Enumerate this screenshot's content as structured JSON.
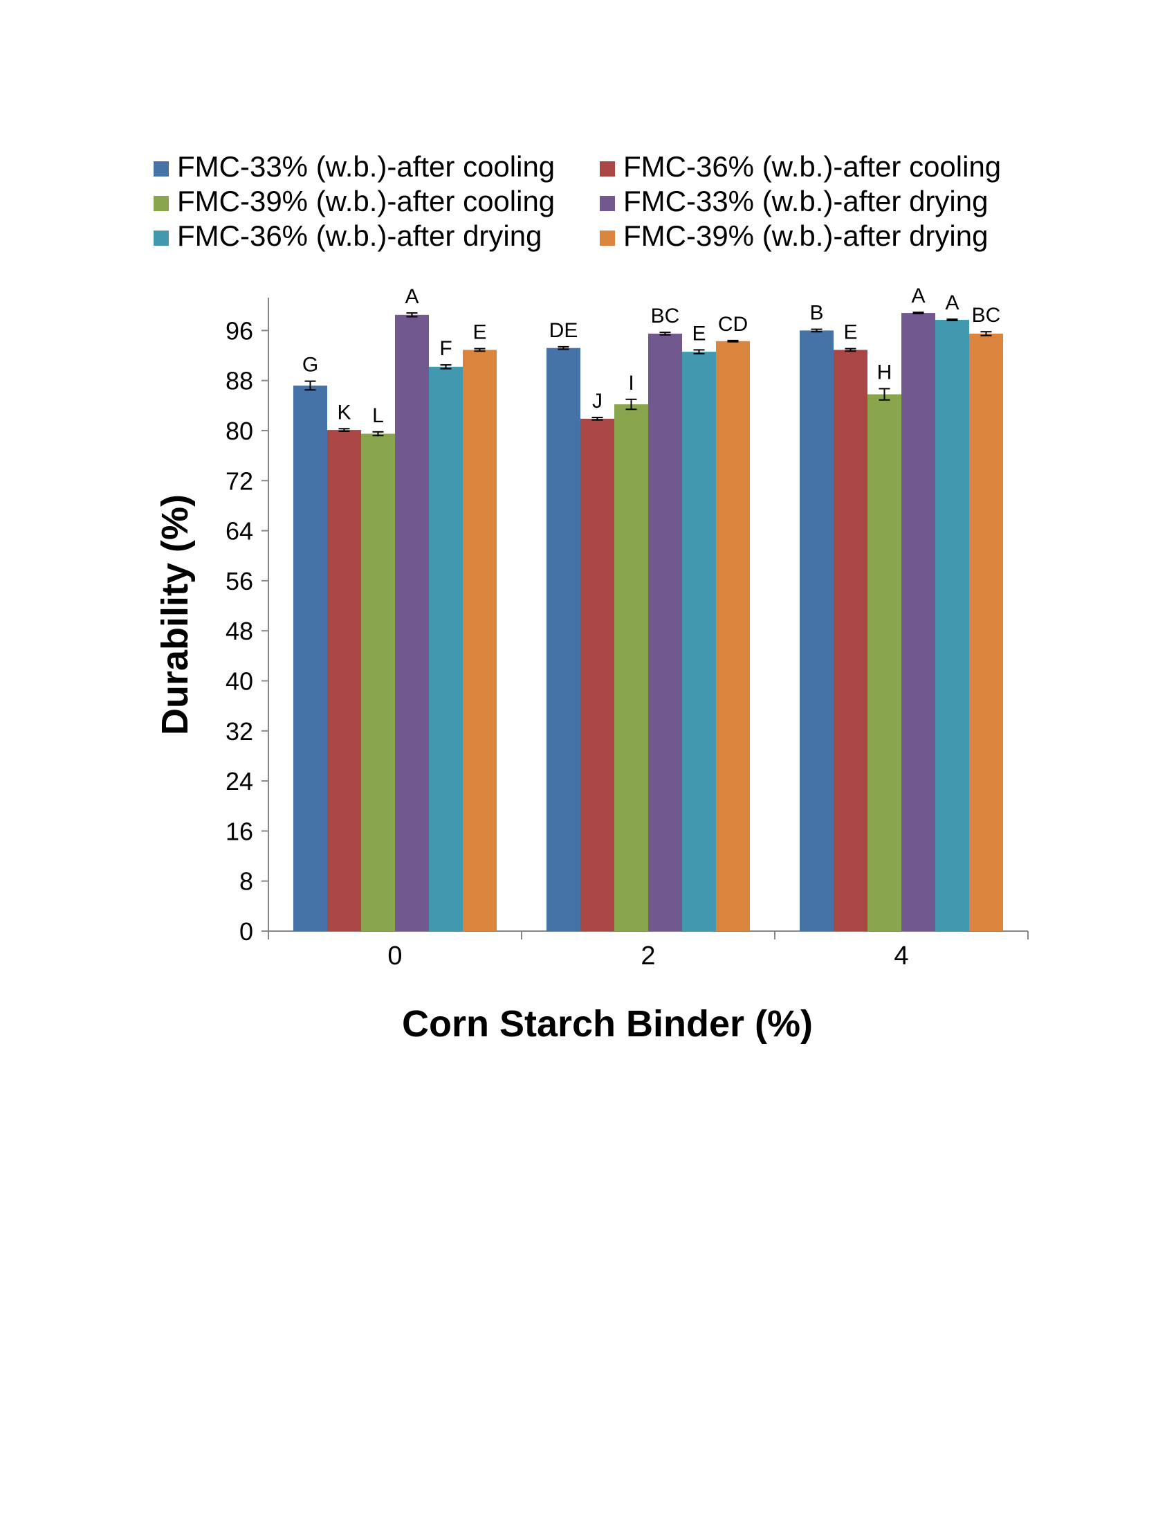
{
  "chart_data": {
    "type": "bar",
    "title": "",
    "xlabel": "Corn Starch Binder (%)",
    "ylabel": "Durability (%)",
    "ylim": [
      0,
      100
    ],
    "yticks": [
      0,
      8,
      16,
      24,
      32,
      40,
      48,
      56,
      64,
      72,
      80,
      88,
      96
    ],
    "categories": [
      "0",
      "2",
      "4"
    ],
    "legend_position": "top",
    "series": [
      {
        "name": "FMC-33% (w.b.)-after cooling",
        "color": "#4572A7",
        "values": [
          87.2,
          93.2,
          96.0
        ],
        "errors": [
          0.7,
          0.2,
          0.2
        ],
        "letters": [
          "G",
          "DE",
          "B"
        ]
      },
      {
        "name": "FMC-36% (w.b.)-after cooling",
        "color": "#AA4643",
        "values": [
          80.1,
          81.9,
          92.9
        ],
        "errors": [
          0.2,
          0.2,
          0.2
        ],
        "letters": [
          "K",
          "J",
          "E"
        ]
      },
      {
        "name": "FMC-39% (w.b.)-after cooling",
        "color": "#89A54E",
        "values": [
          79.5,
          84.2,
          85.8
        ],
        "errors": [
          0.3,
          0.8,
          0.9
        ],
        "letters": [
          "L",
          "I",
          "H"
        ]
      },
      {
        "name": "FMC-33% (w.b.)-after drying",
        "color": "#71588F",
        "values": [
          98.5,
          95.5,
          98.8
        ],
        "errors": [
          0.3,
          0.2,
          0.1
        ],
        "letters": [
          "A",
          "BC",
          "A"
        ]
      },
      {
        "name": "FMC-36% (w.b.)-after drying",
        "color": "#4198AF",
        "values": [
          90.2,
          92.6,
          97.7
        ],
        "errors": [
          0.3,
          0.3,
          0.1
        ],
        "letters": [
          "F",
          "E",
          "A"
        ]
      },
      {
        "name": "FMC-39% (w.b.)-after drying",
        "color": "#DB843D",
        "values": [
          92.9,
          94.3,
          95.5
        ],
        "errors": [
          0.2,
          0.1,
          0.3
        ],
        "letters": [
          "E",
          "CD",
          "BC"
        ]
      }
    ]
  }
}
